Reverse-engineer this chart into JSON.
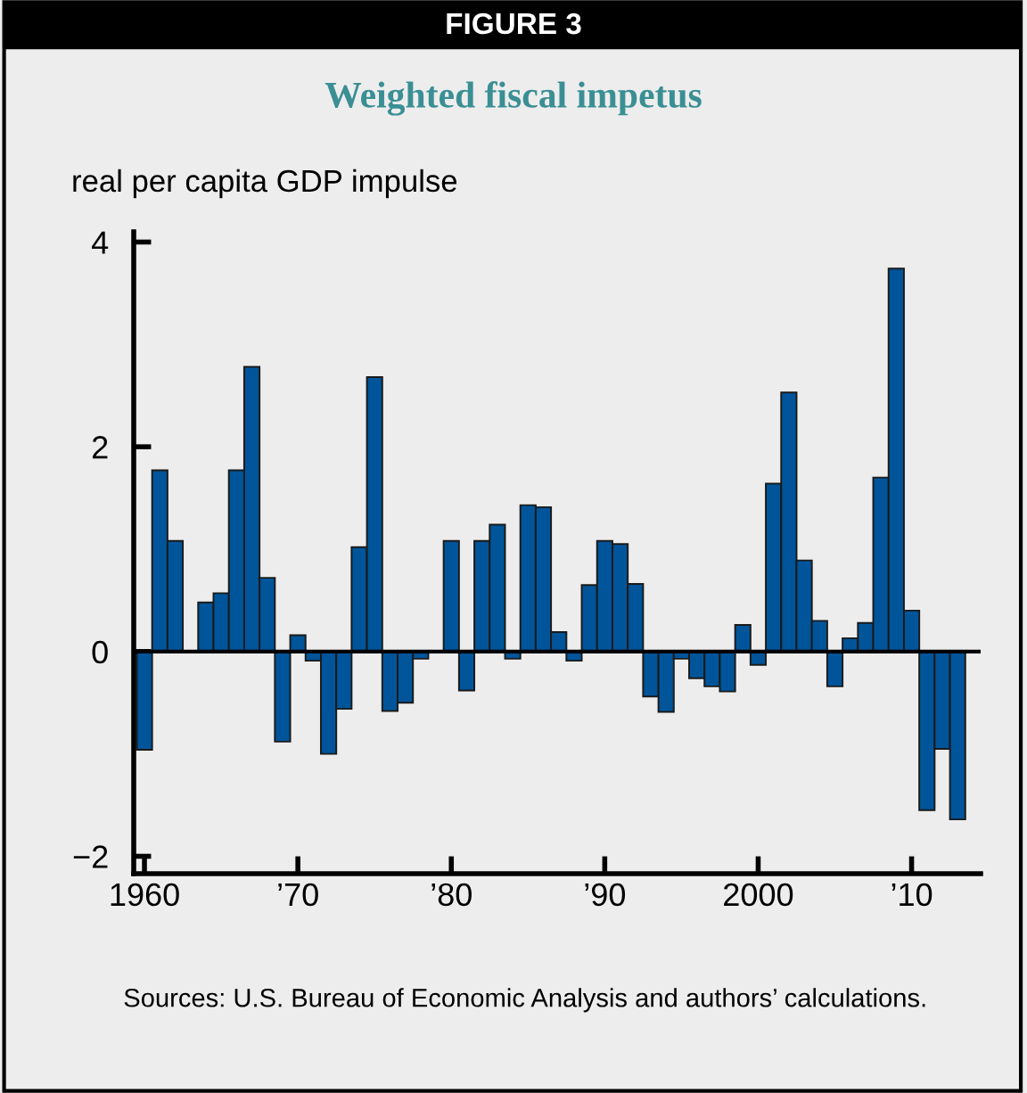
{
  "chart_data": {
    "type": "bar",
    "title": "Weighted fiscal impetus",
    "ylabel": "real per capita GDP impulse",
    "annotations": [
      "FIGURE 3",
      "Sources: U.S. Bureau of Economic Analysis and authors’ calculations."
    ],
    "x": [
      1960,
      1961,
      1962,
      1963,
      1964,
      1965,
      1966,
      1967,
      1968,
      1969,
      1970,
      1971,
      1972,
      1973,
      1974,
      1975,
      1976,
      1977,
      1978,
      1979,
      1980,
      1981,
      1982,
      1983,
      1984,
      1985,
      1986,
      1987,
      1988,
      1989,
      1990,
      1991,
      1992,
      1993,
      1994,
      1995,
      1996,
      1997,
      1998,
      1999,
      2000,
      2001,
      2002,
      2003,
      2004,
      2005,
      2006,
      2007,
      2008,
      2009,
      2010,
      2011,
      2012,
      2013
    ],
    "values": [
      -0.96,
      1.77,
      1.08,
      null,
      0.48,
      0.57,
      1.77,
      2.78,
      0.72,
      -0.88,
      0.16,
      -0.09,
      -1.0,
      -0.56,
      1.02,
      2.68,
      -0.58,
      -0.5,
      -0.07,
      null,
      1.08,
      -0.38,
      1.08,
      1.24,
      -0.07,
      1.43,
      1.41,
      0.19,
      -0.09,
      0.65,
      1.08,
      1.05,
      0.66,
      -0.44,
      -0.59,
      -0.07,
      -0.26,
      -0.34,
      -0.39,
      0.26,
      -0.13,
      1.64,
      2.53,
      0.89,
      0.3,
      -0.34,
      0.13,
      0.28,
      1.7,
      3.74,
      0.4,
      -1.55,
      -0.95,
      -1.64
    ],
    "color": "#00559a",
    "xlim": [
      1959.3,
      2014.5
    ],
    "xticks": [
      {
        "value": 1960,
        "label": "1960"
      },
      {
        "value": 1970,
        "label": "’70"
      },
      {
        "value": 1980,
        "label": "’80"
      },
      {
        "value": 1990,
        "label": "’90"
      },
      {
        "value": 2000,
        "label": "2000"
      },
      {
        "value": 2010,
        "label": "’10"
      }
    ],
    "ylim": [
      -2.17,
      4.1
    ],
    "yticks": [
      {
        "value": -2,
        "label": "−2"
      },
      0,
      2,
      4
    ],
    "ref_lines": [
      {
        "axis": "y",
        "value": 0,
        "color": "#000000"
      }
    ],
    "grid": false,
    "legend": false
  }
}
